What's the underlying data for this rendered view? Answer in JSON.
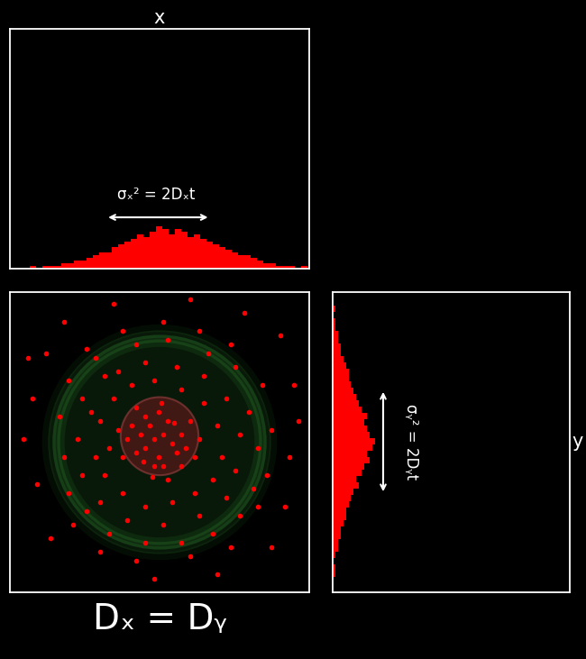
{
  "chart_data": [
    {
      "type": "histogram",
      "title": "x",
      "annotation": "σₓ² = 2Dₓt",
      "bins": [
        15,
        22,
        29,
        36,
        43,
        50,
        57,
        64,
        71,
        78,
        85,
        92,
        99,
        106,
        113,
        120,
        127,
        134,
        141,
        148,
        155,
        162,
        169,
        176,
        183,
        190,
        197,
        204,
        211,
        218,
        225,
        232,
        239,
        246,
        253,
        260,
        267,
        274,
        281,
        288,
        295,
        302,
        309,
        316,
        323,
        330
      ],
      "counts": [
        0,
        1,
        0,
        1,
        1,
        1,
        2,
        2,
        3,
        3,
        4,
        5,
        6,
        6,
        8,
        9,
        10,
        11,
        13,
        12,
        14,
        16,
        15,
        13,
        15,
        14,
        12,
        13,
        11,
        10,
        9,
        8,
        7,
        6,
        5,
        5,
        4,
        3,
        2,
        2,
        1,
        1,
        1,
        0,
        1
      ],
      "color": "#ff0000",
      "xlim": [
        0,
        332
      ],
      "ylim": [
        0,
        90
      ],
      "tick_labels": false
    },
    {
      "type": "scatter",
      "xlabel": "Dₓ = Dᵧ",
      "color": "#ff0000",
      "xlim": [
        0,
        332
      ],
      "ylim": [
        0,
        333
      ],
      "tick_labels": false,
      "points": [
        [
          160,
          170
        ],
        [
          150,
          160
        ],
        [
          170,
          175
        ],
        [
          165,
          150
        ],
        [
          180,
          165
        ],
        [
          145,
          175
        ],
        [
          155,
          185
        ],
        [
          175,
          190
        ],
        [
          185,
          155
        ],
        [
          140,
          155
        ],
        [
          160,
          140
        ],
        [
          170,
          140
        ],
        [
          190,
          175
        ],
        [
          150,
          195
        ],
        [
          130,
          170
        ],
        [
          195,
          160
        ],
        [
          165,
          200
        ],
        [
          135,
          185
        ],
        [
          182,
          188
        ],
        [
          148,
          145
        ],
        [
          158,
          128
        ],
        [
          175,
          125
        ],
        [
          200,
          190
        ],
        [
          125,
          150
        ],
        [
          120,
          180
        ],
        [
          210,
          170
        ],
        [
          168,
          210
        ],
        [
          140,
          205
        ],
        [
          190,
          140
        ],
        [
          205,
          150
        ],
        [
          110,
          160
        ],
        [
          100,
          190
        ],
        [
          115,
          215
        ],
        [
          135,
          230
        ],
        [
          160,
          235
        ],
        [
          190,
          225
        ],
        [
          215,
          210
        ],
        [
          230,
          185
        ],
        [
          235,
          150
        ],
        [
          225,
          125
        ],
        [
          205,
          110
        ],
        [
          180,
          100
        ],
        [
          150,
          95
        ],
        [
          125,
          110
        ],
        [
          105,
          130
        ],
        [
          95,
          150
        ],
        [
          90,
          200
        ],
        [
          120,
          245
        ],
        [
          150,
          255
        ],
        [
          185,
          250
        ],
        [
          215,
          240
        ],
        [
          240,
          215
        ],
        [
          255,
          175
        ],
        [
          250,
          135
        ],
        [
          240,
          105
        ],
        [
          210,
          85
        ],
        [
          170,
          75
        ],
        [
          130,
          80
        ],
        [
          100,
          100
        ],
        [
          80,
          130
        ],
        [
          75,
          170
        ],
        [
          80,
          215
        ],
        [
          105,
          240
        ],
        [
          95,
          260
        ],
        [
          140,
          275
        ],
        [
          175,
          280
        ],
        [
          220,
          265
        ],
        [
          250,
          250
        ],
        [
          265,
          200
        ],
        [
          275,
          160
        ],
        [
          270,
          115
        ],
        [
          255,
          85
        ],
        [
          225,
          65
        ],
        [
          190,
          55
        ],
        [
          150,
          55
        ],
        [
          110,
          65
        ],
        [
          85,
          90
        ],
        [
          65,
          110
        ],
        [
          60,
          150
        ],
        [
          55,
          195
        ],
        [
          65,
          235
        ],
        [
          85,
          270
        ],
        [
          125,
          290
        ],
        [
          170,
          300
        ],
        [
          210,
          290
        ],
        [
          245,
          275
        ],
        [
          280,
          230
        ],
        [
          290,
          180
        ],
        [
          285,
          130
        ],
        [
          275,
          95
        ],
        [
          245,
          50
        ],
        [
          200,
          40
        ],
        [
          140,
          35
        ],
        [
          100,
          45
        ],
        [
          70,
          75
        ],
        [
          15,
          170
        ],
        [
          30,
          120
        ],
        [
          25,
          215
        ],
        [
          40,
          265
        ],
        [
          60,
          300
        ],
        [
          300,
          285
        ],
        [
          315,
          230
        ],
        [
          310,
          150
        ],
        [
          305,
          95
        ],
        [
          290,
          50
        ],
        [
          230,
          20
        ],
        [
          160,
          15
        ],
        [
          115,
          320
        ],
        [
          200,
          325
        ],
        [
          260,
          310
        ],
        [
          45,
          60
        ],
        [
          20,
          260
        ],
        [
          320,
          190
        ]
      ]
    },
    {
      "type": "histogram",
      "orientation": "horizontal",
      "ylabel": "y",
      "annotation": "σᵧ² = 2Dᵧt",
      "bins": [
        10,
        17,
        24,
        31,
        38,
        45,
        52,
        59,
        66,
        73,
        80,
        87,
        94,
        101,
        108,
        115,
        122,
        129,
        136,
        143,
        150,
        157,
        164,
        171,
        178,
        185,
        192,
        199,
        206,
        213,
        220,
        227,
        234,
        241,
        248,
        255,
        262,
        269,
        276,
        283,
        290,
        297,
        304,
        311,
        318,
        325
      ],
      "counts": [
        0,
        1,
        1,
        0,
        1,
        2,
        2,
        3,
        3,
        4,
        5,
        5,
        6,
        7,
        8,
        10,
        9,
        11,
        12,
        14,
        13,
        15,
        16,
        14,
        13,
        12,
        13,
        11,
        10,
        9,
        8,
        7,
        6,
        6,
        5,
        4,
        3,
        3,
        2,
        2,
        1,
        1,
        0,
        1,
        0
      ],
      "color": "#ff0000",
      "xlim": [
        0,
        90
      ],
      "ylim": [
        0,
        333
      ],
      "tick_labels": false
    }
  ]
}
